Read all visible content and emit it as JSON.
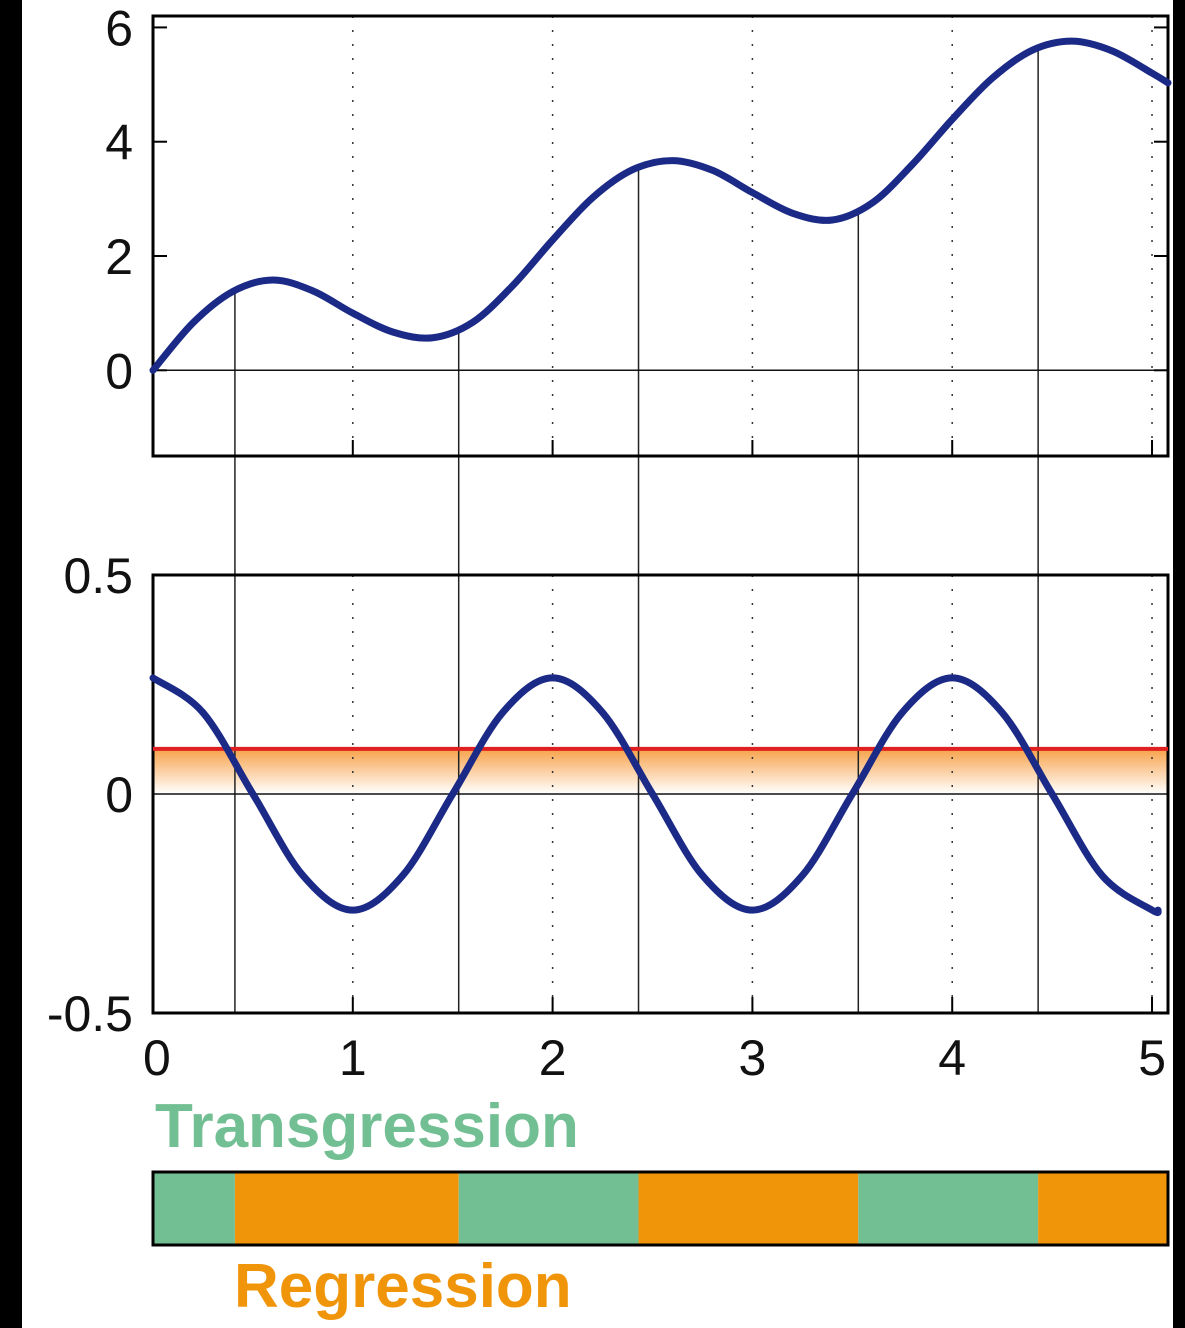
{
  "chart_data": [
    {
      "type": "line",
      "title": "",
      "xlabel": "",
      "ylabel": "",
      "xlim": [
        0,
        5.08
      ],
      "ylim": [
        -1.5,
        6.2
      ],
      "x_ticks": [
        "0",
        "1",
        "2",
        "3",
        "4",
        "5"
      ],
      "y_ticks": [
        "0",
        "2",
        "4",
        "6"
      ],
      "grid": "dotted vertical",
      "series": [
        {
          "color": "#1B2A87",
          "x": [
            0,
            0.2,
            0.4,
            0.6,
            0.8,
            1.0,
            1.2,
            1.4,
            1.6,
            1.8,
            2.0,
            2.2,
            2.4,
            2.6,
            2.8,
            3.0,
            3.2,
            3.4,
            3.6,
            3.8,
            4.0,
            4.2,
            4.4,
            4.6,
            4.8,
            5.0,
            5.08
          ],
          "y": [
            0.0,
            0.83,
            1.38,
            1.58,
            1.39,
            1.0,
            0.67,
            0.57,
            0.84,
            1.48,
            2.28,
            3.02,
            3.51,
            3.67,
            3.5,
            3.11,
            2.75,
            2.63,
            2.93,
            3.6,
            4.39,
            5.11,
            5.6,
            5.76,
            5.59,
            5.2,
            5.03
          ]
        }
      ],
      "vertical_lines_x": [
        0.41,
        1.53,
        2.43,
        3.53,
        4.43
      ]
    },
    {
      "type": "line",
      "title": "",
      "xlabel": "",
      "ylabel": "",
      "xlim": [
        0,
        5.08
      ],
      "ylim": [
        -0.5,
        0.5
      ],
      "x_ticks": [
        "0",
        "1",
        "2",
        "3",
        "4",
        "5"
      ],
      "y_ticks": [
        "0.5",
        "0",
        "-0.5"
      ],
      "grid": "dotted vertical",
      "series": [
        {
          "color": "#1B2A87",
          "x": [
            0,
            0.25,
            0.5,
            0.75,
            1.0,
            1.25,
            1.5,
            1.75,
            2.0,
            2.25,
            2.5,
            2.75,
            3.0,
            3.25,
            3.5,
            3.75,
            4.0,
            4.25,
            4.5,
            4.75,
            5.0,
            5.03
          ],
          "y": [
            0.265,
            0.186,
            0.0,
            -0.186,
            -0.265,
            -0.186,
            0.0,
            0.186,
            0.265,
            0.186,
            0.0,
            -0.186,
            -0.265,
            -0.186,
            0.0,
            0.186,
            0.265,
            0.186,
            0.0,
            -0.186,
            -0.265,
            -0.265
          ]
        }
      ],
      "threshold_line": {
        "y": 0.103,
        "color": "#E02020"
      },
      "threshold_band": {
        "from": 0.0,
        "to": 0.103,
        "color": "#F7A24A"
      },
      "vertical_lines_x": [
        0.41,
        1.53,
        2.43,
        3.53,
        4.43
      ]
    },
    {
      "type": "bar",
      "orientation": "horizontal-segments",
      "segments": [
        {
          "label": "Transgression",
          "from": 0,
          "to": 0.41,
          "color": "#73BF94"
        },
        {
          "label": "Regression",
          "from": 0.41,
          "to": 1.53,
          "color": "#F0950A"
        },
        {
          "label": "Transgression",
          "from": 1.53,
          "to": 2.43,
          "color": "#73BF94"
        },
        {
          "label": "Regression",
          "from": 2.43,
          "to": 3.53,
          "color": "#F0950A"
        },
        {
          "label": "Transgression",
          "from": 3.53,
          "to": 4.43,
          "color": "#73BF94"
        },
        {
          "label": "Regression",
          "from": 4.43,
          "to": 5.08,
          "color": "#F0950A"
        }
      ]
    }
  ],
  "legend": {
    "transgression": {
      "label": "Transgression",
      "color": "#73BF94"
    },
    "regression": {
      "label": "Regression",
      "color": "#F0950A"
    }
  },
  "colors": {
    "curve": "#1B2A87",
    "threshold": "#E02020",
    "band": "#F7A24A",
    "background": "#FFFFFF",
    "axis": "#000000"
  }
}
